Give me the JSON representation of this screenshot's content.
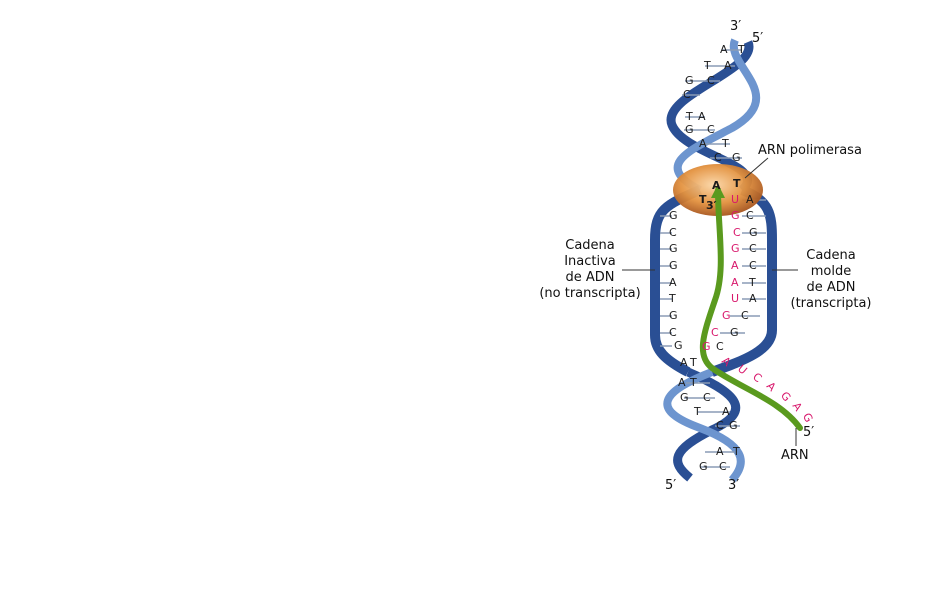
{
  "colors": {
    "strand": "#2a4f94",
    "strand_light": "#7ea3d6",
    "rna": "#5a9a1e",
    "rna_base": "#d8186c",
    "dna_base": "#1a1a1a",
    "enzyme": "#d9843a",
    "rung": "#8a9bb5"
  },
  "labels": {
    "top_left_end": "3′",
    "top_right_end": "5′",
    "bottom_left_end": "5′",
    "bottom_right_end": "3′",
    "rna_end_5": "5′",
    "rna_end_3": "3′",
    "polymerase": "ARN polimerasa",
    "inactive_strand": [
      "Cadena",
      "Inactiva",
      "de ADN",
      "(no transcripta)"
    ],
    "template_strand": [
      "Cadena",
      "molde",
      "de ADN",
      "(transcripta)"
    ],
    "rna": "ARN"
  },
  "top_pairs": [
    [
      "A",
      "T"
    ],
    [
      "T",
      "A"
    ],
    [
      "G",
      "C"
    ],
    [
      "C",
      ""
    ],
    [
      "T",
      "A"
    ],
    [
      "G",
      "C"
    ],
    [
      "A",
      "T"
    ],
    [
      "C",
      "G"
    ]
  ],
  "bubble_left": [
    "G",
    "C",
    "G",
    "G",
    "A",
    "T",
    "G",
    "C",
    "G"
  ],
  "bubble_right": [
    [
      "U",
      "A"
    ],
    [
      "G",
      "C"
    ],
    [
      "C",
      "G"
    ],
    [
      "G",
      "C"
    ],
    [
      "A",
      "C"
    ],
    [
      "A",
      "T"
    ],
    [
      "U",
      "A"
    ],
    [
      "G",
      "C"
    ],
    [
      "C",
      "G"
    ],
    [
      "G",
      "C"
    ]
  ],
  "bubble_top_pair": [
    "A",
    "T"
  ],
  "bubble_top_extra": [
    "T",
    "3′"
  ],
  "bottom_pairs": [
    [
      "A",
      "T"
    ],
    [
      "A",
      "T"
    ],
    [
      "G",
      "C"
    ],
    [
      "T",
      "A"
    ],
    [
      "C",
      "G"
    ],
    [
      "A",
      "T"
    ],
    [
      "G",
      "C"
    ]
  ],
  "rna_tail": [
    "A",
    "U",
    "C",
    "A",
    "G",
    "A",
    "G"
  ]
}
